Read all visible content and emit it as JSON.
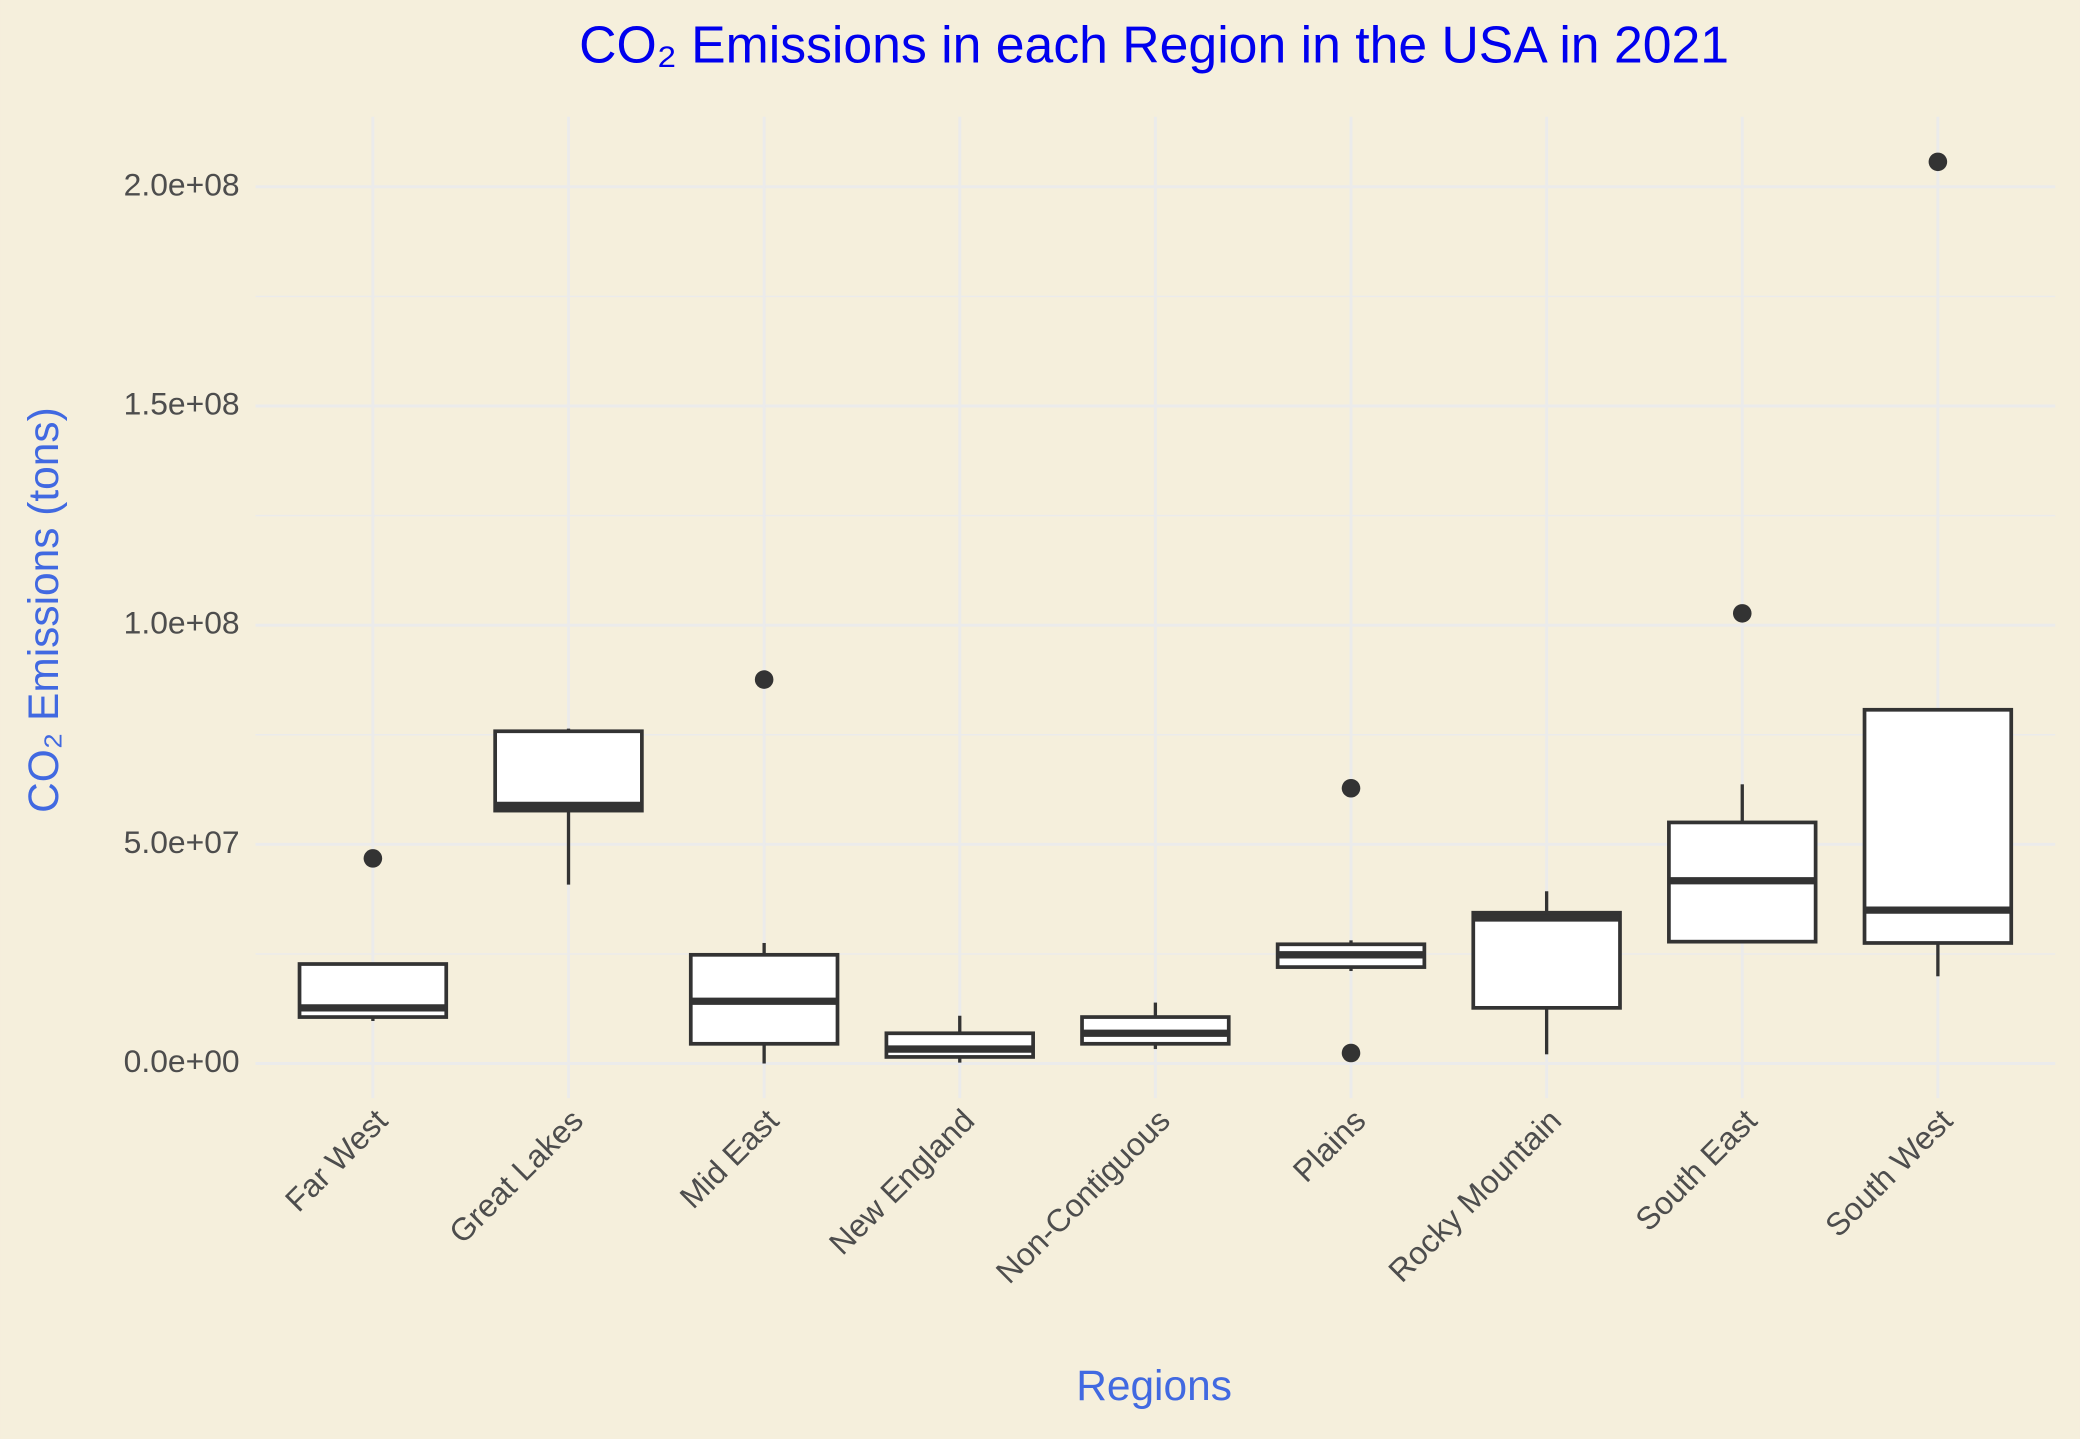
{
  "chart_data": {
    "type": "box",
    "title": "CO₂ Emissions in each Region in the USA in 2021",
    "x_label": "Regions",
    "y_label": "CO₂ Emissions (tons)",
    "categories": [
      "Far West",
      "Great Lakes",
      "Mid East",
      "New England",
      "Non-Contiguous",
      "Plains",
      "Rocky Mountain",
      "South East",
      "South West"
    ],
    "whisker_low": [
      9700000,
      40800000,
      0,
      200000,
      3300000,
      21100000,
      2100000,
      27800000,
      19900000
    ],
    "q1": [
      10600000,
      57700000,
      4500000,
      1500000,
      4500000,
      22000000,
      12700000,
      27800000,
      27500000
    ],
    "median": [
      12700000,
      58900000,
      14200000,
      3300000,
      6900000,
      24800000,
      33200000,
      41700000,
      35000000
    ],
    "q3": [
      22700000,
      75800000,
      24800000,
      6900000,
      10600000,
      27200000,
      34400000,
      55000000,
      80700000
    ],
    "whisker_high": [
      22700000,
      76400000,
      27500000,
      10900000,
      13900000,
      28100000,
      39300000,
      63700000,
      80700000
    ],
    "outliers": [
      [
        46800000
      ],
      [],
      [
        87600000
      ],
      [],
      [],
      [
        62800000,
        2400000
      ],
      [],
      [
        102700000
      ],
      [
        205700000
      ]
    ],
    "box_fill": "#ffffff",
    "box_stroke": "#333333",
    "ylim": [
      -7900000,
      216000000
    ],
    "yticks": [
      {
        "value": 0,
        "label": "0.0e+00"
      },
      {
        "value": 50000000,
        "label": "5.0e+07"
      },
      {
        "value": 100000000,
        "label": "1.0e+08"
      },
      {
        "value": 150000000,
        "label": "1.5e+08"
      },
      {
        "value": 200000000,
        "label": "2.0e+08"
      }
    ],
    "y_minor_ticks": [
      25000000,
      75000000,
      125000000,
      175000000
    ],
    "grid": true
  }
}
